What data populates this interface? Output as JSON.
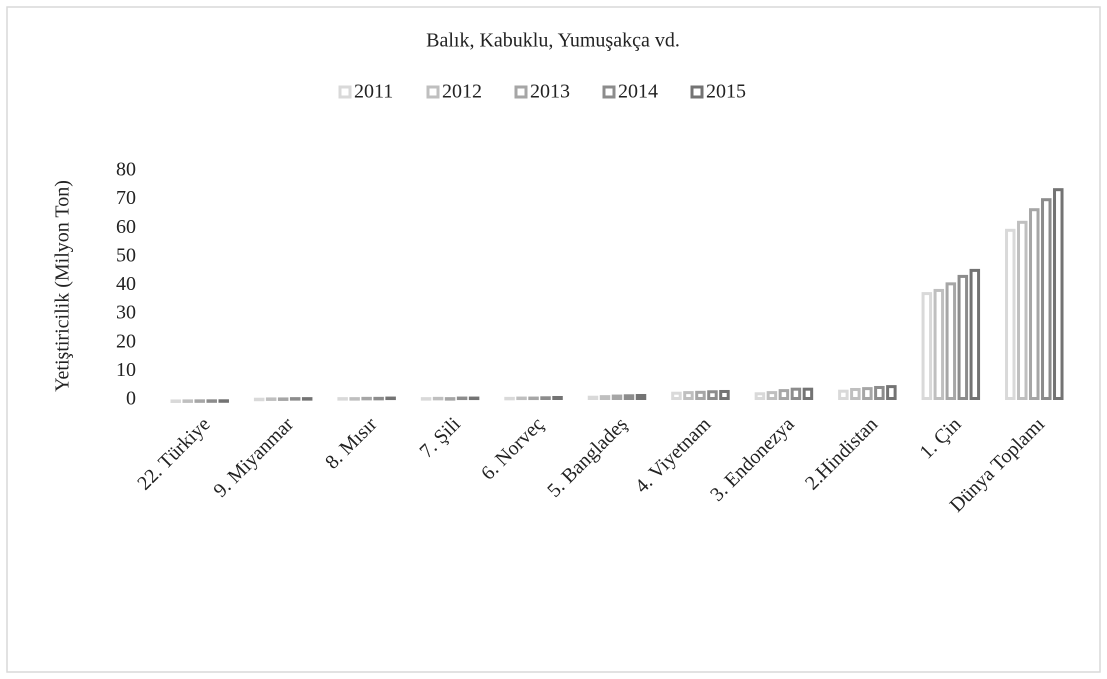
{
  "chart_data": {
    "type": "bar",
    "title": "Balık, Kabuklu, Yumuşakça vd.",
    "y_label": "Yetiştiricilik (Milyon Ton)",
    "categories": [
      "22. Türkiye",
      "9. Miyanmar",
      "8. Mısır",
      "7. Şili",
      "6. Norveç",
      "5. Bangladeş",
      "4. Viyetnam",
      "3. Endonezya",
      "2.Hindistan",
      "1. Çin",
      "Dünya Toplamı"
    ],
    "series": [
      {
        "name": "2011",
        "color": "#d9d9d9",
        "values": [
          0.19,
          0.8,
          1.0,
          1.0,
          1.1,
          1.5,
          2.9,
          2.7,
          3.6,
          37.7,
          59.8
        ]
      },
      {
        "name": "2012",
        "color": "#bfbfbf",
        "values": [
          0.21,
          0.9,
          1.0,
          1.1,
          1.2,
          1.7,
          3.1,
          3.1,
          4.2,
          38.8,
          62.6
        ]
      },
      {
        "name": "2013",
        "color": "#a6a6a6",
        "values": [
          0.23,
          0.9,
          1.1,
          1.0,
          1.2,
          1.9,
          3.2,
          3.8,
          4.5,
          41.1,
          67.0
        ]
      },
      {
        "name": "2014",
        "color": "#8c8c8c",
        "values": [
          0.24,
          1.0,
          1.1,
          1.2,
          1.3,
          2.0,
          3.4,
          4.3,
          4.9,
          43.7,
          70.5
        ]
      },
      {
        "name": "2015",
        "color": "#737373",
        "values": [
          0.25,
          1.0,
          1.2,
          1.2,
          1.4,
          2.1,
          3.5,
          4.3,
          5.2,
          45.8,
          74.0
        ]
      }
    ],
    "ylim": [
      0,
      80
    ],
    "yticks": [
      0,
      10,
      20,
      30,
      40,
      50,
      60,
      70,
      80
    ],
    "grid": false,
    "legend": "top"
  }
}
